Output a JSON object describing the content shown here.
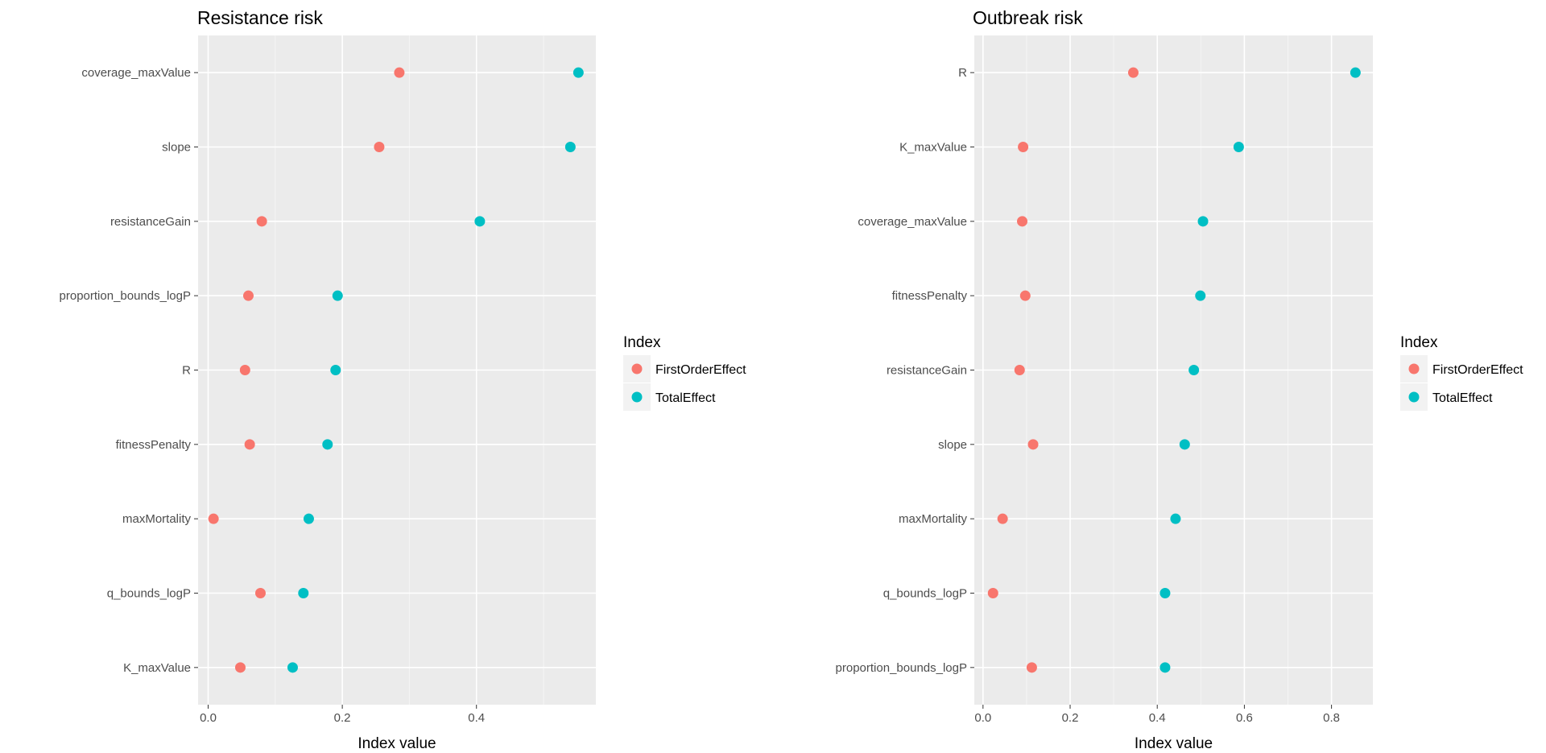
{
  "colors": {
    "panel_background": "#ebebeb",
    "grid_major": "#ffffff",
    "grid_minor": "#f5f5f5",
    "tick": "#333333",
    "legend_key_background": "#f2f2f2"
  },
  "chart_data": [
    {
      "type": "scatter",
      "title": "Resistance risk",
      "xlabel": "Index value",
      "ylabel": "",
      "xlim": [
        -0.015,
        0.578
      ],
      "xticks": [
        0.0,
        0.2,
        0.4
      ],
      "xtick_labels": [
        "0.0",
        "0.2",
        "0.4"
      ],
      "grid": true,
      "legend_position": "right",
      "legend_title": "Index",
      "categories": [
        "coverage_maxValue",
        "slope",
        "resistanceGain",
        "proportion_bounds_logP",
        "R",
        "fitnessPenalty",
        "maxMortality",
        "q_bounds_logP",
        "K_maxValue"
      ],
      "series": [
        {
          "name": "FirstOrderEffect",
          "color": "#f8766d",
          "values": [
            0.285,
            0.255,
            0.08,
            0.06,
            0.055,
            0.062,
            0.008,
            0.078,
            0.048
          ]
        },
        {
          "name": "TotalEffect",
          "color": "#00bfc4",
          "values": [
            0.552,
            0.54,
            0.405,
            0.193,
            0.19,
            0.178,
            0.15,
            0.142,
            0.126
          ]
        }
      ]
    },
    {
      "type": "scatter",
      "title": "Outbreak risk",
      "xlabel": "Index value",
      "ylabel": "",
      "xlim": [
        -0.02,
        0.895
      ],
      "xticks": [
        0.0,
        0.2,
        0.4,
        0.6,
        0.8
      ],
      "xtick_labels": [
        "0.0",
        "0.2",
        "0.4",
        "0.6",
        "0.8"
      ],
      "grid": true,
      "legend_position": "right",
      "legend_title": "Index",
      "categories": [
        "R",
        "K_maxValue",
        "coverage_maxValue",
        "fitnessPenalty",
        "resistanceGain",
        "slope",
        "maxMortality",
        "q_bounds_logP",
        "proportion_bounds_logP"
      ],
      "series": [
        {
          "name": "FirstOrderEffect",
          "color": "#f8766d",
          "values": [
            0.345,
            0.092,
            0.09,
            0.097,
            0.084,
            0.115,
            0.045,
            0.023,
            0.112
          ]
        },
        {
          "name": "TotalEffect",
          "color": "#00bfc4",
          "values": [
            0.855,
            0.587,
            0.505,
            0.499,
            0.484,
            0.463,
            0.442,
            0.418,
            0.418
          ]
        }
      ]
    }
  ]
}
